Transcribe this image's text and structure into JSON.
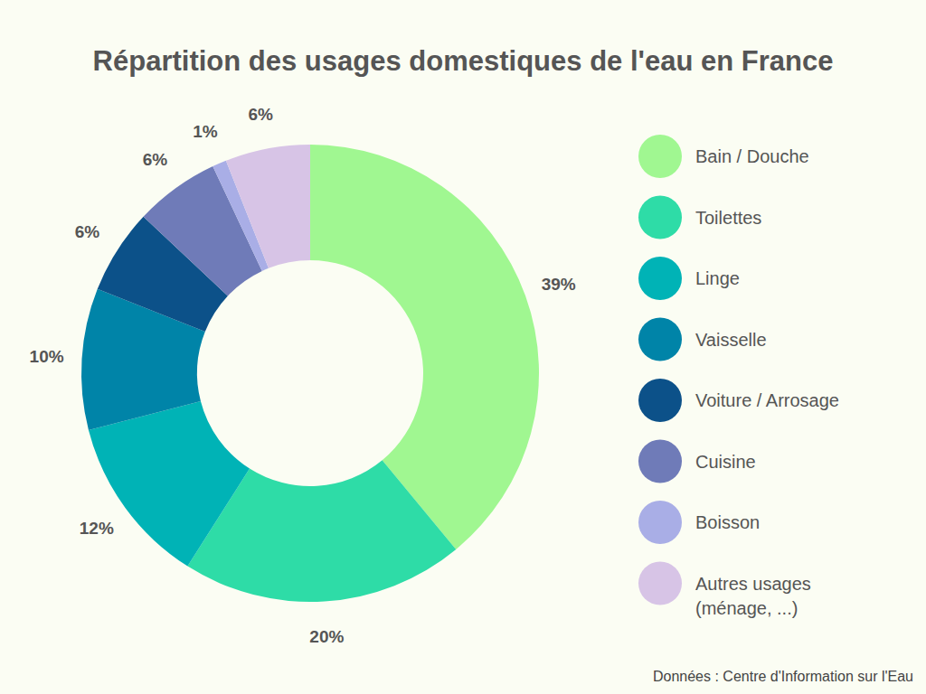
{
  "chart_data": {
    "type": "donut",
    "title": "Répartition des usages domestiques de l'eau en France",
    "categories": [
      "Bain / Douche",
      "Toilettes",
      "Linge",
      "Vaisselle",
      "Voiture / Arrosage",
      "Cuisine",
      "Boisson",
      "Autres usages (ménage, ...)"
    ],
    "values": [
      39,
      20,
      12,
      10,
      6,
      6,
      1,
      6
    ],
    "value_labels": [
      "39%",
      "20%",
      "12%",
      "10%",
      "6%",
      "6%",
      "1%",
      "6%"
    ],
    "colors": [
      "#a0f791",
      "#2edca7",
      "#00b3b6",
      "#0084a8",
      "#0c5189",
      "#6f7bb8",
      "#a9aee6",
      "#d7c4e6"
    ],
    "data_labels": true,
    "legend": "right",
    "source": "Données : Centre d'Information sur l'Eau"
  }
}
